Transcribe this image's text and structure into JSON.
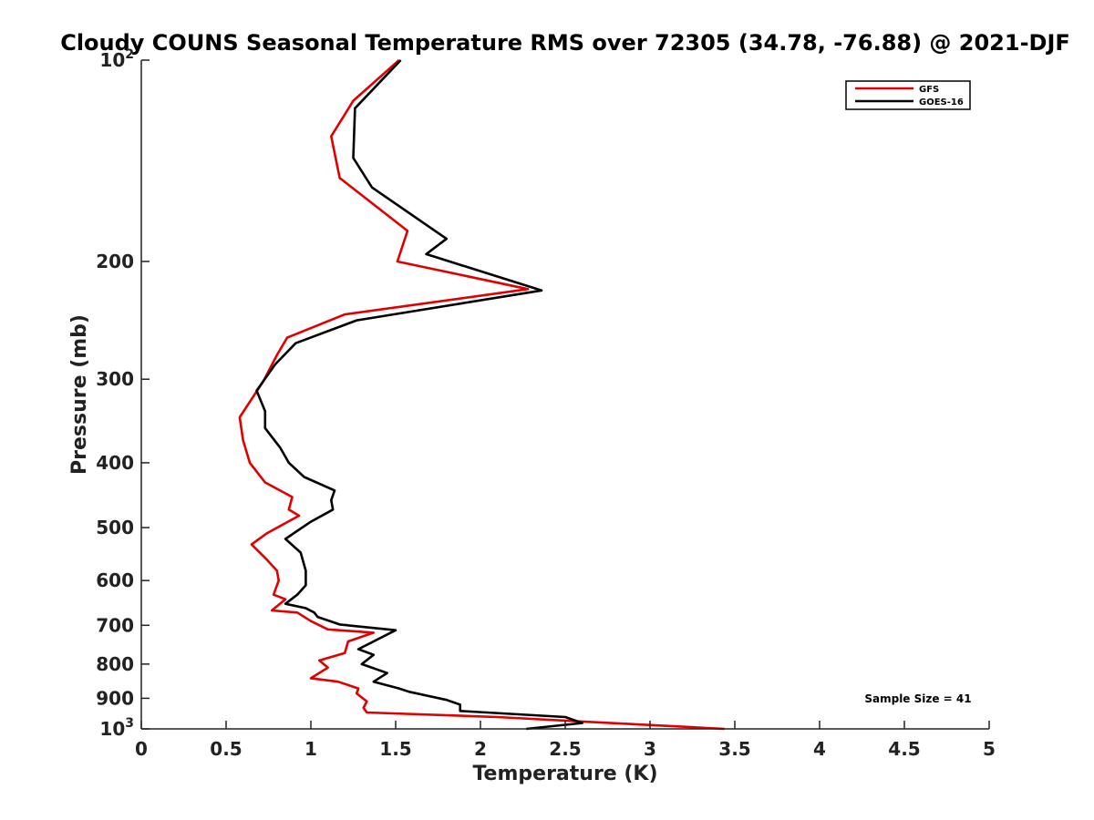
{
  "chart_data": {
    "type": "line",
    "title": "Cloudy COUNS Seasonal Temperature RMS over 72305 (34.78, -76.88) @ 2021-DJF",
    "xlabel": "Temperature (K)",
    "ylabel": "Pressure (mb)",
    "xlim": [
      0,
      5
    ],
    "ylim": [
      100,
      1000
    ],
    "y_scale": "log",
    "y_reversed": true,
    "x_ticks": [
      {
        "value": 0,
        "label": "0"
      },
      {
        "value": 0.5,
        "label": "0.5"
      },
      {
        "value": 1,
        "label": "1"
      },
      {
        "value": 1.5,
        "label": "1.5"
      },
      {
        "value": 2,
        "label": "2"
      },
      {
        "value": 2.5,
        "label": "2.5"
      },
      {
        "value": 3,
        "label": "3"
      },
      {
        "value": 3.5,
        "label": "3.5"
      },
      {
        "value": 4,
        "label": "4"
      },
      {
        "value": 4.5,
        "label": "4.5"
      },
      {
        "value": 5,
        "label": "5"
      }
    ],
    "y_ticks": [
      {
        "value": 100,
        "label": "10",
        "sup": "2"
      },
      {
        "value": 200,
        "label": "200"
      },
      {
        "value": 300,
        "label": "300"
      },
      {
        "value": 400,
        "label": "400"
      },
      {
        "value": 500,
        "label": "500"
      },
      {
        "value": 600,
        "label": "600"
      },
      {
        "value": 700,
        "label": "700"
      },
      {
        "value": 800,
        "label": "800"
      },
      {
        "value": 900,
        "label": "900"
      },
      {
        "value": 1000,
        "label": "10",
        "sup": "3"
      }
    ],
    "grid": false,
    "legend_position": "top-right",
    "annotation": "Sample Size = 41",
    "series": [
      {
        "name": "GFS",
        "color": "#e00000",
        "points": [
          [
            1.52,
            100
          ],
          [
            1.25,
            115
          ],
          [
            1.12,
            130
          ],
          [
            1.17,
            150
          ],
          [
            1.57,
            180
          ],
          [
            1.51,
            200
          ],
          [
            2.28,
            220
          ],
          [
            1.2,
            240
          ],
          [
            0.86,
            260
          ],
          [
            0.8,
            276
          ],
          [
            0.72,
            302
          ],
          [
            0.58,
            342
          ],
          [
            0.6,
            370
          ],
          [
            0.64,
            400
          ],
          [
            0.73,
            428
          ],
          [
            0.89,
            450
          ],
          [
            0.87,
            470
          ],
          [
            0.93,
            480
          ],
          [
            0.74,
            510
          ],
          [
            0.65,
            530
          ],
          [
            0.73,
            555
          ],
          [
            0.8,
            580
          ],
          [
            0.81,
            600
          ],
          [
            0.78,
            630
          ],
          [
            0.85,
            640
          ],
          [
            0.77,
            665
          ],
          [
            0.92,
            670
          ],
          [
            1.0,
            690
          ],
          [
            1.1,
            710
          ],
          [
            1.37,
            718
          ],
          [
            1.22,
            740
          ],
          [
            1.2,
            770
          ],
          [
            1.05,
            790
          ],
          [
            1.1,
            810
          ],
          [
            1.0,
            840
          ],
          [
            1.16,
            850
          ],
          [
            1.28,
            870
          ],
          [
            1.27,
            885
          ],
          [
            1.33,
            910
          ],
          [
            1.31,
            930
          ],
          [
            1.33,
            945
          ],
          [
            2.1,
            960
          ],
          [
            2.6,
            975
          ],
          [
            3.44,
            1000
          ]
        ]
      },
      {
        "name": "GOES-16",
        "color": "#000000",
        "points": [
          [
            1.53,
            100
          ],
          [
            1.26,
            118
          ],
          [
            1.25,
            140
          ],
          [
            1.36,
            155
          ],
          [
            1.8,
            185
          ],
          [
            1.68,
            195
          ],
          [
            2.36,
            221
          ],
          [
            1.27,
            245
          ],
          [
            0.91,
            265
          ],
          [
            0.79,
            285
          ],
          [
            0.68,
            312
          ],
          [
            0.73,
            335
          ],
          [
            0.73,
            355
          ],
          [
            0.82,
            380
          ],
          [
            0.87,
            400
          ],
          [
            0.96,
            420
          ],
          [
            1.14,
            440
          ],
          [
            1.12,
            455
          ],
          [
            1.13,
            470
          ],
          [
            1.0,
            490
          ],
          [
            0.85,
            520
          ],
          [
            0.94,
            545
          ],
          [
            0.97,
            580
          ],
          [
            0.97,
            610
          ],
          [
            0.92,
            630
          ],
          [
            0.85,
            650
          ],
          [
            0.97,
            660
          ],
          [
            1.02,
            670
          ],
          [
            1.04,
            680
          ],
          [
            1.17,
            698
          ],
          [
            1.5,
            712
          ],
          [
            1.28,
            760
          ],
          [
            1.37,
            775
          ],
          [
            1.3,
            800
          ],
          [
            1.45,
            825
          ],
          [
            1.37,
            850
          ],
          [
            1.52,
            870
          ],
          [
            1.58,
            880
          ],
          [
            1.8,
            905
          ],
          [
            1.88,
            920
          ],
          [
            1.88,
            940
          ],
          [
            2.5,
            960
          ],
          [
            2.6,
            980
          ],
          [
            2.27,
            1000
          ]
        ]
      }
    ]
  }
}
